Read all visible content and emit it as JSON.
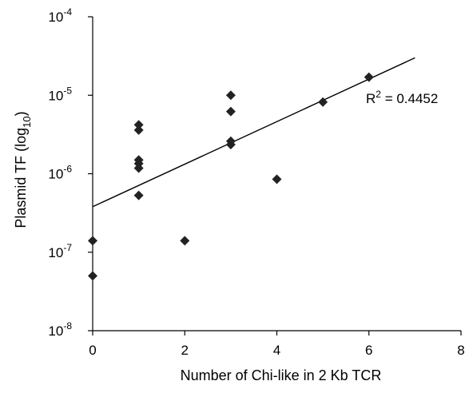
{
  "chart_data": {
    "type": "scatter",
    "title": "",
    "xlabel": "Number of Chi-like in 2 Kb TCR",
    "ylabel": {
      "base": "Plasmid TF (log",
      "sub": "10",
      "close": ")"
    },
    "xlim": [
      0,
      8
    ],
    "ylim": [
      1e-08,
      0.0001
    ],
    "yscale": "log",
    "x_ticks": [
      0,
      2,
      4,
      6,
      8
    ],
    "y_ticks": [
      {
        "value": 1e-08,
        "base": "10",
        "exp": "-8"
      },
      {
        "value": 1e-07,
        "base": "10",
        "exp": "-7"
      },
      {
        "value": 1e-06,
        "base": "10",
        "exp": "-6"
      },
      {
        "value": 1e-05,
        "base": "10",
        "exp": "-5"
      },
      {
        "value": 0.0001,
        "base": "10",
        "exp": "-4"
      }
    ],
    "grid": false,
    "points": [
      {
        "x": 0,
        "y": 1.4e-07
      },
      {
        "x": 0,
        "y": 5e-08
      },
      {
        "x": 1,
        "y": 4.2e-06
      },
      {
        "x": 1,
        "y": 3.6e-06
      },
      {
        "x": 1,
        "y": 1.5e-06
      },
      {
        "x": 1,
        "y": 1.35e-06
      },
      {
        "x": 1,
        "y": 1.18e-06
      },
      {
        "x": 1,
        "y": 5.3e-07
      },
      {
        "x": 2,
        "y": 1.4e-07
      },
      {
        "x": 3,
        "y": 1e-05
      },
      {
        "x": 3,
        "y": 6.2e-06
      },
      {
        "x": 3,
        "y": 2.6e-06
      },
      {
        "x": 3,
        "y": 2.35e-06
      },
      {
        "x": 4,
        "y": 8.5e-07
      },
      {
        "x": 5,
        "y": 8.2e-06
      },
      {
        "x": 6,
        "y": 1.7e-05
      }
    ],
    "trendline": {
      "x": [
        0,
        7
      ],
      "y": [
        3.8e-07,
        3e-05
      ]
    },
    "annotation": {
      "base": "R",
      "sup": "2",
      "rest": " = 0.4452"
    },
    "marker_color": "#222222"
  }
}
